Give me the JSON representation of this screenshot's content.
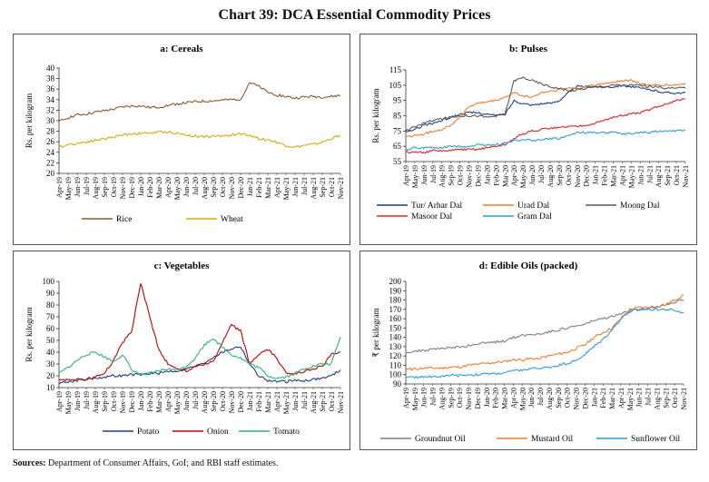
{
  "title": "Chart 39: DCA Essential Commodity Prices",
  "sources": {
    "label": "Sources:",
    "text": "Department of Consumer Affairs, GoI; and RBI staff estimates."
  },
  "x_labels": [
    "Apr-19",
    "May-19",
    "Jun-19",
    "Jul-19",
    "Aug-19",
    "Sep-19",
    "Oct-19",
    "Nov-19",
    "Dec-19",
    "Jan-20",
    "Feb-20",
    "Mar-20",
    "Apr-20",
    "May-20",
    "Jun-20",
    "Jul-20",
    "Aug-20",
    "Sep-20",
    "Oct-20",
    "Nov-20",
    "Dec-20",
    "Jan-21",
    "Feb-21",
    "Mar-21",
    "Apr-21",
    "May-21",
    "Jun-21",
    "Jul-21",
    "Aug-21",
    "Sep-21",
    "Oct-21",
    "Nov-21"
  ],
  "chart_data": [
    {
      "id": "a",
      "type": "line",
      "title": "a: Cereals",
      "ylabel": "Rs. per kilogram",
      "ylim": [
        20,
        40
      ],
      "yticks": [
        20,
        22,
        24,
        26,
        28,
        30,
        32,
        34,
        36,
        38,
        40
      ],
      "series": [
        {
          "name": "Rice",
          "color": "#8B5A2B",
          "values": [
            29.8,
            30.6,
            31.1,
            31.3,
            31.6,
            31.9,
            32.2,
            32.6,
            32.8,
            32.8,
            32.5,
            32.6,
            32.9,
            33.2,
            33.4,
            33.6,
            33.7,
            33.8,
            33.9,
            34.0,
            34.1,
            37.3,
            36.5,
            35.4,
            34.9,
            34.6,
            34.3,
            34.5,
            34.6,
            34.5,
            34.6,
            34.8
          ]
        },
        {
          "name": "Wheat",
          "color": "#D4AC0D",
          "values": [
            25.0,
            25.5,
            25.7,
            26.0,
            26.3,
            26.6,
            26.9,
            27.3,
            27.5,
            27.6,
            27.7,
            27.8,
            27.9,
            27.6,
            27.3,
            27.1,
            27.0,
            27.0,
            27.1,
            27.3,
            27.5,
            27.3,
            26.6,
            26.4,
            25.9,
            25.3,
            25.0,
            25.3,
            25.5,
            25.9,
            26.6,
            27.2
          ]
        }
      ]
    },
    {
      "id": "b",
      "type": "line",
      "title": "b: Pulses",
      "ylabel": "Rs. per kilogram",
      "ylim": [
        55,
        115
      ],
      "yticks": [
        55,
        65,
        75,
        85,
        95,
        105,
        115
      ],
      "series": [
        {
          "name": "Tur/ Arhar Dal",
          "color": "#1F3C88",
          "values": [
            74,
            76,
            79,
            80,
            82,
            84,
            86,
            87,
            87,
            86,
            85,
            86,
            95,
            93,
            92,
            93,
            93,
            95,
            100,
            104,
            104,
            104,
            104,
            104,
            105,
            104,
            103,
            102,
            101,
            100,
            100,
            100
          ]
        },
        {
          "name": "Urad Dal",
          "color": "#ED7D31",
          "values": [
            71,
            72,
            73,
            75,
            76,
            79,
            84,
            91,
            93,
            94,
            95,
            97,
            100,
            98,
            97,
            100,
            101,
            102,
            103,
            103,
            104,
            105,
            106,
            107,
            108,
            108,
            106,
            105,
            105,
            105,
            105,
            106
          ]
        },
        {
          "name": "Moong Dal",
          "color": "#595959",
          "values": [
            75,
            78,
            80,
            82,
            83,
            84,
            85,
            85,
            85,
            84,
            85,
            86,
            108,
            110,
            108,
            106,
            104,
            103,
            101,
            102,
            103,
            104,
            104,
            105,
            105,
            105,
            105,
            104,
            104,
            103,
            103,
            103
          ]
        },
        {
          "name": "Masoor Dal",
          "color": "#D62728",
          "values": [
            61,
            61,
            61,
            62,
            62,
            62,
            63,
            63,
            63,
            64,
            65,
            66,
            70,
            73,
            75,
            76,
            77,
            77,
            78,
            78,
            79,
            80,
            82,
            84,
            85,
            86,
            87,
            89,
            91,
            93,
            95,
            96
          ]
        },
        {
          "name": "Gram Dal",
          "color": "#2E9BD6",
          "values": [
            63,
            64,
            64,
            64,
            64,
            65,
            65,
            65,
            66,
            66,
            66,
            67,
            69,
            69,
            69,
            69,
            70,
            70,
            72,
            74,
            74,
            74,
            74,
            74,
            73,
            73,
            74,
            74,
            75,
            75,
            75,
            76
          ]
        }
      ]
    },
    {
      "id": "c",
      "type": "line",
      "title": "c: Vegetables",
      "ylabel": "Rs. per kilogram",
      "ylim": [
        10,
        100
      ],
      "yticks": [
        10,
        20,
        30,
        40,
        50,
        60,
        70,
        80,
        90,
        100
      ],
      "series": [
        {
          "name": "Potato",
          "color": "#1F3C88",
          "values": [
            14,
            15,
            16,
            17,
            18,
            19,
            20,
            20,
            21,
            21,
            22,
            22,
            24,
            24,
            26,
            28,
            31,
            36,
            40,
            43,
            45,
            30,
            20,
            16,
            15,
            15,
            16,
            16,
            17,
            18,
            20,
            25
          ]
        },
        {
          "name": "Onion",
          "color": "#C00000",
          "values": [
            16,
            17,
            17,
            17,
            19,
            22,
            33,
            48,
            58,
            99,
            70,
            42,
            30,
            26,
            24,
            28,
            30,
            32,
            48,
            63,
            58,
            30,
            38,
            42,
            35,
            22,
            22,
            24,
            26,
            28,
            38,
            40
          ]
        },
        {
          "name": "Tomato",
          "color": "#2EB07A",
          "values": [
            22,
            27,
            33,
            38,
            40,
            36,
            32,
            38,
            25,
            21,
            22,
            24,
            26,
            24,
            28,
            35,
            46,
            52,
            44,
            38,
            35,
            30,
            27,
            20,
            18,
            19,
            22,
            26,
            28,
            30,
            30,
            53
          ]
        }
      ]
    },
    {
      "id": "d",
      "type": "line",
      "title": "d: Edible Oils (packed)",
      "ylabel": "₹ per kilogram",
      "ylim": [
        90,
        200
      ],
      "yticks": [
        90,
        100,
        110,
        120,
        130,
        140,
        150,
        160,
        170,
        180,
        190,
        200
      ],
      "series": [
        {
          "name": "Groundnut Oil",
          "color": "#7F7F7F",
          "values": [
            124,
            125,
            126,
            127,
            128,
            129,
            130,
            131,
            133,
            134,
            135,
            136,
            140,
            142,
            143,
            144,
            146,
            148,
            150,
            152,
            154,
            158,
            160,
            162,
            165,
            168,
            170,
            172,
            173,
            175,
            178,
            180
          ]
        },
        {
          "name": "Mustard Oil",
          "color": "#ED7D31",
          "values": [
            106,
            106,
            107,
            107,
            107,
            108,
            108,
            110,
            111,
            112,
            113,
            114,
            116,
            116,
            117,
            118,
            120,
            122,
            124,
            128,
            132,
            140,
            145,
            150,
            160,
            170,
            172,
            172,
            172,
            175,
            180,
            185
          ]
        },
        {
          "name": "Sunflower Oil",
          "color": "#2E9BD6",
          "values": [
            97,
            97,
            98,
            98,
            98,
            99,
            99,
            100,
            100,
            101,
            101,
            102,
            104,
            105,
            106,
            107,
            108,
            110,
            112,
            115,
            122,
            130,
            138,
            148,
            160,
            168,
            170,
            170,
            170,
            170,
            169,
            166
          ]
        }
      ]
    }
  ]
}
